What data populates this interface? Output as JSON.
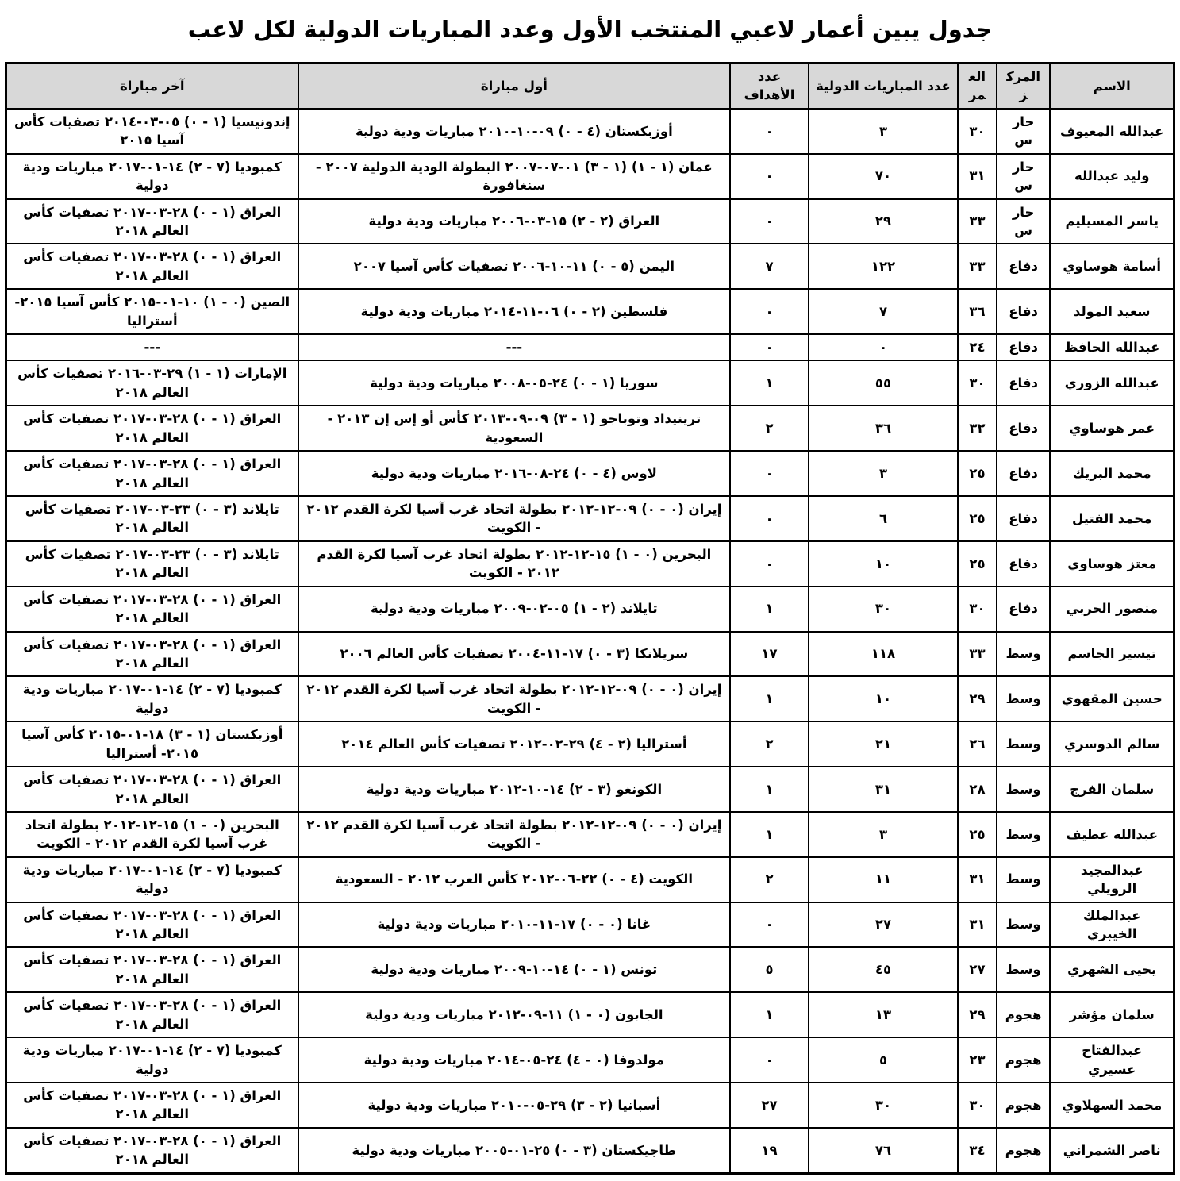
{
  "title": "جدول يبين أعمار لاعبي المنتخب الأول وعدد المباريات الدولية لكل لاعب",
  "colors": {
    "header_bg": "#d8d8d8",
    "border": "#000000",
    "page_bg": "#ffffff"
  },
  "table": {
    "headers": [
      "الاسم",
      "المركز",
      "العمر",
      "عدد المباريات الدولية",
      "عدد الأهداف",
      "أول مباراة",
      "آخر مباراة"
    ],
    "rows": [
      [
        "عبدالله المعيوف",
        "حارس",
        "٣٠",
        "٣",
        "٠",
        "أوزبكستان (٤ - ٠) ٠٩-١٠-٢٠١٠ مباريات ودية دولية",
        "إندونيسيا (١ - ٠) ٠٥-٠٣-٢٠١٤ تصفيات كأس آسيا ٢٠١٥"
      ],
      [
        "وليد عبدالله",
        "حارس",
        "٣١",
        "٧٠",
        "٠",
        "عمان (١ - ١) (١ - ٣) ٠١-٠٧-٢٠٠٧ البطولة الودية الدولية ٢٠٠٧ - سنغافورة",
        "كمبوديا (٧ - ٢) ١٤-٠١-٢٠١٧ مباريات ودية دولية"
      ],
      [
        "ياسر المسيليم",
        "حارس",
        "٣٣",
        "٢٩",
        "٠",
        "العراق (٢ - ٢) ١٥-٠٣-٢٠٠٦ مباريات ودية دولية",
        "العراق (١ - ٠) ٢٨-٠٣-٢٠١٧ تصفيات كأس العالم ٢٠١٨"
      ],
      [
        "أسامة هوساوي",
        "دفاع",
        "٣٣",
        "١٢٢",
        "٧",
        "اليمن (٥ - ٠) ١١-١٠-٢٠٠٦ تصفيات كأس آسيا ٢٠٠٧",
        "العراق (١ - ٠) ٢٨-٠٣-٢٠١٧ تصفيات كأس العالم ٢٠١٨"
      ],
      [
        "سعيد المولد",
        "دفاع",
        "٣٦",
        "٧",
        "٠",
        "فلسطين (٢ - ٠) ٠٦-١١-٢٠١٤ مباريات ودية دولية",
        "الصين (٠ - ١) ١٠-٠١-٢٠١٥ كأس آسيا ٢٠١٥- أستراليا"
      ],
      [
        "عبدالله الحافظ",
        "دفاع",
        "٢٤",
        "٠",
        "٠",
        "---",
        "---"
      ],
      [
        "عبدالله الزوري",
        "دفاع",
        "٣٠",
        "٥٥",
        "١",
        "سوريا (١ - ٠) ٢٤-٠٥-٢٠٠٨ مباريات ودية دولية",
        "الإمارات (١ - ١) ٢٩-٠٣-٢٠١٦ تصفيات كأس العالم ٢٠١٨"
      ],
      [
        "عمر هوساوي",
        "دفاع",
        "٣٢",
        "٣٦",
        "٢",
        "ترينيداد وتوباجو (١ - ٣) ٠٩-٠٩-٢٠١٣ كأس أو إس إن ٢٠١٣ - السعودية",
        "العراق (١ - ٠) ٢٨-٠٣-٢٠١٧ تصفيات كأس العالم ٢٠١٨"
      ],
      [
        "محمد البريك",
        "دفاع",
        "٢٥",
        "٣",
        "٠",
        "لاوس (٤ - ٠) ٢٤-٠٨-٢٠١٦ مباريات ودية دولية",
        "العراق (١ - ٠) ٢٨-٠٣-٢٠١٧ تصفيات كأس العالم ٢٠١٨"
      ],
      [
        "محمد الفتيل",
        "دفاع",
        "٢٥",
        "٦",
        "٠",
        "إيران (٠ - ٠) ٠٩-١٢-٢٠١٢ بطولة اتحاد غرب آسيا لكرة القدم ٢٠١٢ - الكويت",
        "تايلاند (٣ - ٠) ٢٣-٠٣-٢٠١٧ تصفيات كأس العالم ٢٠١٨"
      ],
      [
        "معتز هوساوي",
        "دفاع",
        "٢٥",
        "١٠",
        "٠",
        "البحرين (٠ - ١) ١٥-١٢-٢٠١٢ بطولة اتحاد غرب آسيا لكرة القدم ٢٠١٢ - الكويت",
        "تايلاند (٣ - ٠) ٢٣-٠٣-٢٠١٧ تصفيات كأس العالم ٢٠١٨"
      ],
      [
        "منصور الحربي",
        "دفاع",
        "٣٠",
        "٣٠",
        "١",
        "تايلاند (٢ - ١) ٠٥-٠٢-٢٠٠٩ مباريات ودية دولية",
        "العراق (١ - ٠) ٢٨-٠٣-٢٠١٧ تصفيات كأس العالم ٢٠١٨"
      ],
      [
        "تيسير الجاسم",
        "وسط",
        "٣٣",
        "١١٨",
        "١٧",
        "سريلانكا (٣ - ٠) ١٧-١١-٢٠٠٤ تصفيات كأس العالم ٢٠٠٦",
        "العراق (١ - ٠) ٢٨-٠٣-٢٠١٧ تصفيات كأس العالم ٢٠١٨"
      ],
      [
        "حسين المقهوي",
        "وسط",
        "٢٩",
        "١٠",
        "١",
        "إيران (٠ - ٠) ٠٩-١٢-٢٠١٢ بطولة اتحاد غرب آسيا لكرة القدم ٢٠١٢ - الكويت",
        "كمبوديا (٧ - ٢) ١٤-٠١-٢٠١٧ مباريات ودية دولية"
      ],
      [
        "سالم الدوسري",
        "وسط",
        "٢٦",
        "٢١",
        "٢",
        "أستراليا (٢ - ٤) ٢٩-٠٢-٢٠١٢ تصفيات كأس العالم ٢٠١٤",
        "أوزبكستان (١ - ٣) ١٨-٠١-٢٠١٥ كأس آسيا ٢٠١٥- أستراليا"
      ],
      [
        "سلمان الفرج",
        "وسط",
        "٢٨",
        "٣١",
        "١",
        "الكونغو (٣ - ٢) ١٤-١٠-٢٠١٢ مباريات ودية دولية",
        "العراق (١ - ٠) ٢٨-٠٣-٢٠١٧ تصفيات كأس العالم ٢٠١٨"
      ],
      [
        "عبدالله عطيف",
        "وسط",
        "٢٥",
        "٣",
        "١",
        "إيران (٠ - ٠) ٠٩-١٢-٢٠١٢ بطولة اتحاد غرب آسيا لكرة القدم ٢٠١٢ - الكويت",
        "البحرين (٠ - ١) ١٥-١٢-٢٠١٢ بطولة اتحاد غرب آسيا لكرة القدم ٢٠١٢ - الكويت"
      ],
      [
        "عبدالمجيد الرويلي",
        "وسط",
        "٣١",
        "١١",
        "٢",
        "الكويت (٤ - ٠) ٢٢-٠٦-٢٠١٢ كأس العرب ٢٠١٢ - السعودية",
        "كمبوديا (٧ - ٢) ١٤-٠١-٢٠١٧ مباريات ودية دولية"
      ],
      [
        "عبدالملك الخيبري",
        "وسط",
        "٣١",
        "٢٧",
        "٠",
        "غانا (٠ - ٠) ١٧-١١-٢٠١٠ مباريات ودية دولية",
        "العراق (١ - ٠) ٢٨-٠٣-٢٠١٧ تصفيات كأس العالم ٢٠١٨"
      ],
      [
        "يحيى الشهري",
        "وسط",
        "٢٧",
        "٤٥",
        "٥",
        "تونس (١ - ٠) ١٤-١٠-٢٠٠٩ مباريات ودية دولية",
        "العراق (١ - ٠) ٢٨-٠٣-٢٠١٧ تصفيات كأس العالم ٢٠١٨"
      ],
      [
        "سلمان مؤشر",
        "هجوم",
        "٢٩",
        "١٣",
        "١",
        "الجابون (٠ - ١) ١١-٠٩-٢٠١٢ مباريات ودية دولية",
        "العراق (١ - ٠) ٢٨-٠٣-٢٠١٧ تصفيات كأس العالم ٢٠١٨"
      ],
      [
        "عبدالفتاح عسيري",
        "هجوم",
        "٢٣",
        "٥",
        "٠",
        "مولدوفا (٠ - ٤) ٢٤-٠٥-٢٠١٤ مباريات ودية دولية",
        "كمبوديا (٧ - ٢) ١٤-٠١-٢٠١٧ مباريات ودية دولية"
      ],
      [
        "محمد السهلاوي",
        "هجوم",
        "٣٠",
        "٣٠",
        "٢٧",
        "أسبانيا (٢ - ٣) ٢٩-٠٥-٢٠١٠ مباريات ودية دولية",
        "العراق (١ - ٠) ٢٨-٠٣-٢٠١٧ تصفيات كأس العالم ٢٠١٨"
      ],
      [
        "ناصر الشمراني",
        "هجوم",
        "٣٤",
        "٧٦",
        "١٩",
        "طاجيكستان (٣ - ٠) ٢٥-٠١-٢٠٠٥ مباريات ودية دولية",
        "العراق (١ - ٠) ٢٨-٠٣-٢٠١٧ تصفيات كأس العالم ٢٠١٨"
      ]
    ]
  }
}
